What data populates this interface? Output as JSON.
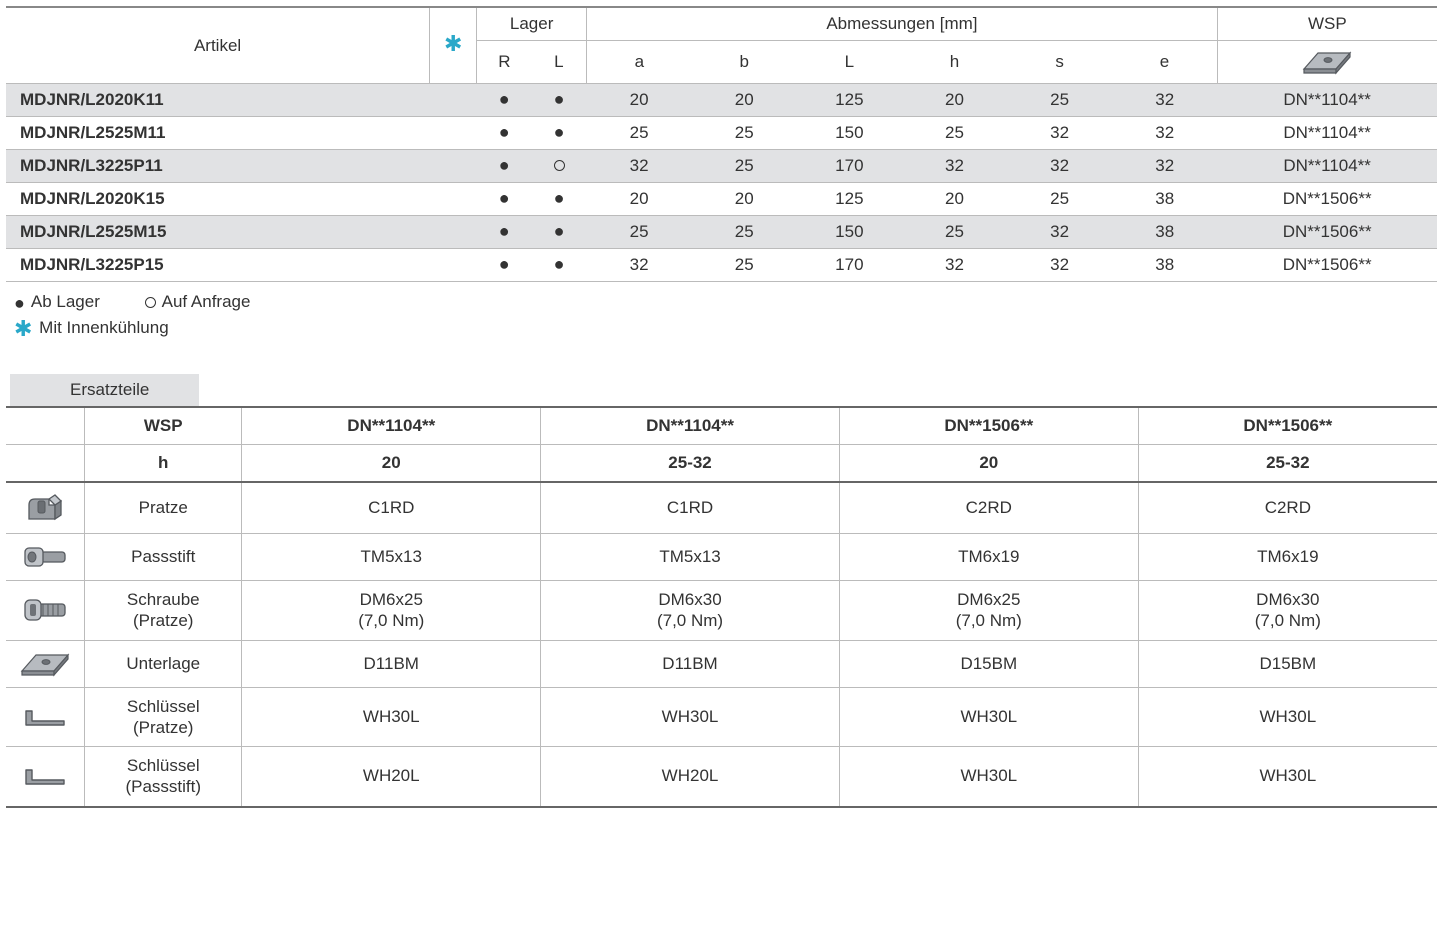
{
  "colors": {
    "accent": "#2aa8c9",
    "border": "#bbbbbb",
    "border_strong": "#666666",
    "row_alt": "#e1e2e4",
    "text": "#333333",
    "icon_fill": "#9a9ea3",
    "icon_stroke": "#55595e"
  },
  "table1": {
    "header": {
      "artikel": "Artikel",
      "lager": "Lager",
      "abmessungen": "Abmessungen [mm]",
      "wsp": "WSP",
      "r": "R",
      "l": "L",
      "dims": [
        "a",
        "b",
        "L",
        "h",
        "s",
        "e"
      ]
    },
    "rows": [
      {
        "artikel": "MDJNR/L2020K11",
        "r": "filled",
        "l": "filled",
        "a": "20",
        "b": "20",
        "L": "125",
        "h": "20",
        "s": "25",
        "e": "32",
        "wsp": "DN**1104**",
        "alt": true
      },
      {
        "artikel": "MDJNR/L2525M11",
        "r": "filled",
        "l": "filled",
        "a": "25",
        "b": "25",
        "L": "150",
        "h": "25",
        "s": "32",
        "e": "32",
        "wsp": "DN**1104**",
        "alt": false
      },
      {
        "artikel": "MDJNR/L3225P11",
        "r": "filled",
        "l": "open",
        "a": "32",
        "b": "25",
        "L": "170",
        "h": "32",
        "s": "32",
        "e": "32",
        "wsp": "DN**1104**",
        "alt": true
      },
      {
        "artikel": "MDJNR/L2020K15",
        "r": "filled",
        "l": "filled",
        "a": "20",
        "b": "20",
        "L": "125",
        "h": "20",
        "s": "25",
        "e": "38",
        "wsp": "DN**1506**",
        "alt": false
      },
      {
        "artikel": "MDJNR/L2525M15",
        "r": "filled",
        "l": "filled",
        "a": "25",
        "b": "25",
        "L": "150",
        "h": "25",
        "s": "32",
        "e": "38",
        "wsp": "DN**1506**",
        "alt": true
      },
      {
        "artikel": "MDJNR/L3225P15",
        "r": "filled",
        "l": "filled",
        "a": "32",
        "b": "25",
        "L": "170",
        "h": "32",
        "s": "32",
        "e": "38",
        "wsp": "DN**1506**",
        "alt": false
      }
    ]
  },
  "legend": {
    "ab_lager": "Ab Lager",
    "auf_anfrage": "Auf Anfrage",
    "mit_innenkuehlung": "Mit Innenkühlung"
  },
  "table2": {
    "title": "Ersatzteile",
    "header": {
      "wsp": "WSP",
      "h": "h",
      "cols": [
        "DN**1104**",
        "DN**1104**",
        "DN**1506**",
        "DN**1506**"
      ],
      "h_vals": [
        "20",
        "25-32",
        "20",
        "25-32"
      ]
    },
    "rows": [
      {
        "icon": "pratze",
        "label": "Pratze",
        "vals": [
          "C1RD",
          "C1RD",
          "C2RD",
          "C2RD"
        ]
      },
      {
        "icon": "passstift",
        "label": "Passstift",
        "vals": [
          "TM5x13",
          "TM5x13",
          "TM6x19",
          "TM6x19"
        ]
      },
      {
        "icon": "schraube",
        "label": "Schraube\n(Pratze)",
        "vals": [
          "DM6x25\n(7,0 Nm)",
          "DM6x30\n(7,0 Nm)",
          "DM6x25\n(7,0 Nm)",
          "DM6x30\n(7,0 Nm)"
        ]
      },
      {
        "icon": "unterlage",
        "label": "Unterlage",
        "vals": [
          "D11BM",
          "D11BM",
          "D15BM",
          "D15BM"
        ]
      },
      {
        "icon": "wrench",
        "label": "Schlüssel\n(Pratze)",
        "vals": [
          "WH30L",
          "WH30L",
          "WH30L",
          "WH30L"
        ]
      },
      {
        "icon": "wrench",
        "label": "Schlüssel\n(Passstift)",
        "vals": [
          "WH20L",
          "WH20L",
          "WH30L",
          "WH30L"
        ]
      }
    ]
  }
}
